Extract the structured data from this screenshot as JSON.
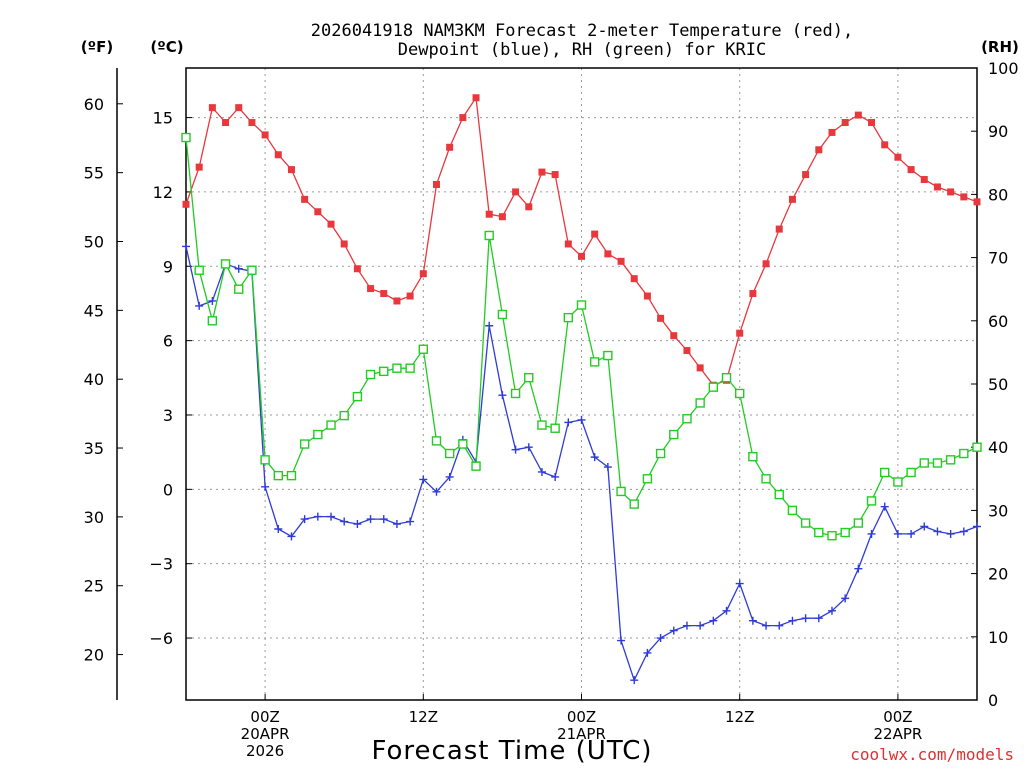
{
  "chart_data": {
    "type": "line",
    "title_line1": "2026041918 NAM3KM Forecast 2-meter Temperature (red),",
    "title_line2": "Dewpoint (blue), RH (green) for KRIC",
    "xlabel": "Forecast Time (UTC)",
    "unit_labels": {
      "fahrenheit": "(ºF)",
      "celsius": "(ºC)",
      "rh": "(RH)"
    },
    "credit": "coolwx.com/models",
    "ylim_celsius": [
      -8.5,
      17
    ],
    "ylim_fahrenheit": [
      16.7,
      62.6
    ],
    "ylim_rh": [
      0,
      100
    ],
    "celsius_ticks": [
      "15",
      "12",
      "9",
      "6",
      "3",
      "0",
      "−3",
      "−6"
    ],
    "celsius_tick_values": [
      15,
      12,
      9,
      6,
      3,
      0,
      -3,
      -6
    ],
    "fahrenheit_ticks": [
      "60",
      "55",
      "50",
      "45",
      "40",
      "35",
      "30",
      "25",
      "20"
    ],
    "fahrenheit_tick_values": [
      60,
      55,
      50,
      45,
      40,
      35,
      30,
      25,
      20
    ],
    "rh_ticks": [
      "100",
      "90",
      "80",
      "70",
      "60",
      "50",
      "40",
      "30",
      "20",
      "10",
      "0"
    ],
    "rh_tick_values": [
      100,
      90,
      80,
      70,
      60,
      50,
      40,
      30,
      20,
      10,
      0
    ],
    "x_ticks": [
      {
        "hour": 6,
        "lines": [
          "00Z",
          "20APR",
          "2026"
        ]
      },
      {
        "hour": 18,
        "lines": [
          "12Z"
        ]
      },
      {
        "hour": 30,
        "lines": [
          "00Z",
          "21APR"
        ]
      },
      {
        "hour": 42,
        "lines": [
          "12Z"
        ]
      },
      {
        "hour": 54,
        "lines": [
          "00Z",
          "22APR"
        ]
      }
    ],
    "x_range_hours": [
      0,
      60
    ],
    "grid": true,
    "series": [
      {
        "name": "2-meter Temperature",
        "axis": "celsius",
        "color": "#e8383d",
        "marker": "filled-square",
        "x": [
          0,
          1,
          2,
          3,
          4,
          5,
          6,
          7,
          8,
          9,
          10,
          11,
          12,
          13,
          14,
          15,
          16,
          17,
          18,
          19,
          20,
          21,
          22,
          23,
          24,
          25,
          26,
          27,
          28,
          29,
          30,
          31,
          32,
          33,
          34,
          35,
          36,
          37,
          38,
          39,
          40,
          41,
          42,
          43,
          44,
          45,
          46,
          47,
          48,
          49,
          50,
          51,
          52,
          53,
          54,
          55,
          56,
          57,
          58,
          59,
          60
        ],
        "values": [
          11.5,
          13.0,
          15.4,
          14.8,
          15.4,
          14.8,
          14.3,
          13.5,
          12.9,
          11.7,
          11.2,
          10.7,
          9.9,
          8.9,
          8.1,
          7.9,
          7.6,
          7.8,
          8.7,
          12.3,
          13.8,
          15.0,
          15.8,
          11.1,
          11.0,
          12.0,
          11.4,
          12.8,
          12.7,
          9.9,
          9.4,
          10.3,
          9.5,
          9.2,
          8.5,
          7.8,
          6.9,
          6.2,
          5.6,
          4.9,
          4.2,
          4.4,
          6.3,
          7.9,
          9.1,
          10.5,
          11.7,
          12.7,
          13.7,
          14.4,
          14.8,
          15.1,
          14.8,
          13.9,
          13.4,
          12.9,
          12.5,
          12.2,
          12.0,
          11.8,
          11.6
        ]
      },
      {
        "name": "Dewpoint",
        "axis": "celsius",
        "color": "#2e3bd8",
        "marker": "plus",
        "x": [
          0,
          1,
          2,
          3,
          4,
          5,
          6,
          7,
          8,
          9,
          10,
          11,
          12,
          13,
          14,
          15,
          16,
          17,
          18,
          19,
          20,
          21,
          22,
          23,
          24,
          25,
          26,
          27,
          28,
          29,
          30,
          31,
          32,
          33,
          34,
          35,
          36,
          37,
          38,
          39,
          40,
          41,
          42,
          43,
          44,
          45,
          46,
          47,
          48,
          49,
          50,
          51,
          52,
          53,
          54,
          55,
          56,
          57,
          58,
          59,
          60
        ],
        "values": [
          9.8,
          7.4,
          7.6,
          9.1,
          8.9,
          8.8,
          0.1,
          -1.6,
          -1.9,
          -1.2,
          -1.1,
          -1.1,
          -1.3,
          -1.4,
          -1.2,
          -1.2,
          -1.4,
          -1.3,
          0.4,
          -0.1,
          0.5,
          2.0,
          1.1,
          6.6,
          3.8,
          1.6,
          1.7,
          0.7,
          0.5,
          2.7,
          2.8,
          1.3,
          0.9,
          -6.1,
          -7.7,
          -6.6,
          -6.0,
          -5.7,
          -5.5,
          -5.5,
          -5.3,
          -4.9,
          -3.8,
          -5.3,
          -5.5,
          -5.5,
          -5.3,
          -5.2,
          -5.2,
          -4.9,
          -4.4,
          -3.2,
          -1.8,
          -0.7,
          -1.8,
          -1.8,
          -1.5,
          -1.7,
          -1.8,
          -1.7,
          -1.5
        ]
      },
      {
        "name": "RH",
        "axis": "rh",
        "color": "#22cc22",
        "marker": "open-square",
        "x": [
          0,
          1,
          2,
          3,
          4,
          5,
          6,
          7,
          8,
          9,
          10,
          11,
          12,
          13,
          14,
          15,
          16,
          17,
          18,
          19,
          20,
          21,
          22,
          23,
          24,
          25,
          26,
          27,
          28,
          29,
          30,
          31,
          32,
          33,
          34,
          35,
          36,
          37,
          38,
          39,
          40,
          41,
          42,
          43,
          44,
          45,
          46,
          47,
          48,
          49,
          50,
          51,
          52,
          53,
          54,
          55,
          56,
          57,
          58,
          59,
          60
        ],
        "values": [
          89,
          68,
          60,
          69,
          65,
          68,
          38,
          35.5,
          35.5,
          40.5,
          42,
          43.5,
          45,
          48,
          51.5,
          52,
          52.5,
          52.5,
          55.5,
          41,
          39,
          40.5,
          37,
          73.5,
          61,
          48.5,
          51,
          43.5,
          43,
          60.5,
          62.5,
          53.5,
          54.5,
          33,
          31,
          35,
          39,
          42,
          44.5,
          47,
          49.5,
          51,
          48.5,
          38.5,
          35,
          32.5,
          30,
          28,
          26.5,
          26,
          26.5,
          28,
          31.5,
          36,
          34.5,
          36,
          37.5,
          37.5,
          38,
          39,
          40
        ]
      }
    ]
  }
}
